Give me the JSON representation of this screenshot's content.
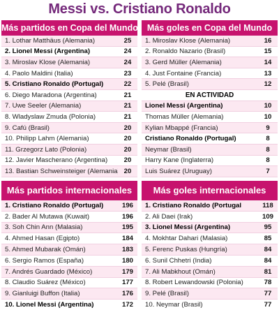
{
  "title": "Messi vs. Cristiano Ronaldo",
  "wc_matches": {
    "header": "Más partidos en Copa del Mundo",
    "rows": [
      {
        "name": "1. Lothar Matthäus (Alemania)",
        "value": "25",
        "bold": false
      },
      {
        "name": "2. Lionel Messi (Argentina)",
        "value": "24",
        "bold": true
      },
      {
        "name": "3. Miroslav Klose (Alemania)",
        "value": "24",
        "bold": false
      },
      {
        "name": "4. Paolo Maldini (Italia)",
        "value": "23",
        "bold": false
      },
      {
        "name": "5. Cristiano Ronaldo (Portugal)",
        "value": "22",
        "bold": true
      },
      {
        "name": "6. Diego Maradona (Argentina)",
        "value": "21",
        "bold": false
      },
      {
        "name": "7. Uwe Seeler (Alemania)",
        "value": "21",
        "bold": false
      },
      {
        "name": "8. Wladyslaw Zmuda (Polonia)",
        "value": "21",
        "bold": false
      },
      {
        "name": "9. Cafú (Brasil)",
        "value": "20",
        "bold": false
      },
      {
        "name": "10. Philipp Lahm (Alemania)",
        "value": "20",
        "bold": false
      },
      {
        "name": "11. Grzegorz Lato (Polonia)",
        "value": "20",
        "bold": false
      },
      {
        "name": "12. Javier Mascherano (Argentina)",
        "value": "20",
        "bold": false
      },
      {
        "name": "13. Bastian Schweinsteiger (Alemania)",
        "value": "20",
        "bold": false
      }
    ]
  },
  "wc_goals": {
    "header": "Más goles en Copa del Mundo",
    "rows": [
      {
        "name": "1. Miroslav Klose (Alemania)",
        "value": "16",
        "bold": false
      },
      {
        "name": "2. Ronaldo Nazario (Brasil)",
        "value": "15",
        "bold": false
      },
      {
        "name": "3. Gerd Müller (Alemania)",
        "value": "14",
        "bold": false
      },
      {
        "name": "4. Just Fontaine (Francia)",
        "value": "13",
        "bold": false
      },
      {
        "name": "5. Pelé (Brasil)",
        "value": "12",
        "bold": false
      }
    ],
    "active_label": "EN ACTIVIDAD",
    "active_rows": [
      {
        "name": "Lionel Messi (Argentina)",
        "value": "10",
        "bold": true
      },
      {
        "name": "Thomas Müller (Alemania)",
        "value": "10",
        "bold": false
      },
      {
        "name": "Kylian Mbappé (Francia)",
        "value": "9",
        "bold": false
      },
      {
        "name": "Cristiano Ronaldo (Portugal)",
        "value": "8",
        "bold": true
      },
      {
        "name": "Neymar (Brasil)",
        "value": "8",
        "bold": false
      },
      {
        "name": "Harry Kane (Inglaterra)",
        "value": "8",
        "bold": false
      },
      {
        "name": "Luis Suárez (Uruguay)",
        "value": "7",
        "bold": false
      }
    ]
  },
  "intl_matches": {
    "header": "Más partidos internacionales",
    "rows": [
      {
        "name": "1. Cristiano Ronaldo (Portugal)",
        "value": "196",
        "bold": true
      },
      {
        "name": "2. Bader Al Mutawa (Kuwait)",
        "value": "196",
        "bold": false
      },
      {
        "name": "3. Soh Chin Ann (Malasia)",
        "value": "195",
        "bold": false
      },
      {
        "name": "4. Ahmed Hasan (Egipto)",
        "value": "184",
        "bold": false
      },
      {
        "name": "5. Ahmed Mubarak (Omán)",
        "value": "183",
        "bold": false
      },
      {
        "name": "6. Sergio Ramos (España)",
        "value": "180",
        "bold": false
      },
      {
        "name": "7. Andrés Guardado (México)",
        "value": "179",
        "bold": false
      },
      {
        "name": "8. Claudio Suárez (México)",
        "value": "177",
        "bold": false
      },
      {
        "name": "9. Gianluigi Buffon (Italia)",
        "value": "176",
        "bold": false
      },
      {
        "name": "10. Lionel Messi (Argentina)",
        "value": "172",
        "bold": true
      }
    ]
  },
  "intl_goals": {
    "header": "Más goles internacionales",
    "rows": [
      {
        "name": "1. Cristiano Ronaldo (Portugal",
        "value": "118",
        "bold": true
      },
      {
        "name": "2. Ali Daei (Irak)",
        "value": "109",
        "bold": false
      },
      {
        "name": "3. Lionel Messi (Argentina)",
        "value": "95",
        "bold": true
      },
      {
        "name": "4. Mokhtar Dahari (Malasia)",
        "value": "85",
        "bold": false
      },
      {
        "name": "5. Ferenc Puskas (Hungría)",
        "value": "84",
        "bold": false
      },
      {
        "name": "6. Sunil Chhetri (India)",
        "value": "84",
        "bold": false
      },
      {
        "name": "7. Ali Mabkhout (Omán)",
        "value": "81",
        "bold": false
      },
      {
        "name": "8. Robert Lewandowski (Polonia)",
        "value": "78",
        "bold": false
      },
      {
        "name": "9. Pelé (Brasil)",
        "value": "77",
        "bold": false
      },
      {
        "name": "10. Neymar (Brasil)",
        "value": "77",
        "bold": false
      }
    ]
  },
  "colors": {
    "title": "#74287a",
    "header_bg": "#c7136e",
    "row_alt": "#fce8f1"
  }
}
